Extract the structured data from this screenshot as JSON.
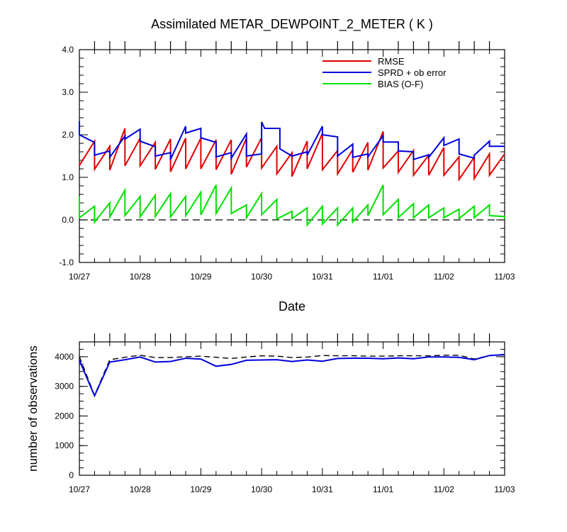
{
  "chart_data": [
    {
      "type": "line",
      "title": "Assimilated METAR_DEWPOINT_2_METER ( K )",
      "xlabel": "Date",
      "ylabel": "",
      "x_ticks": [
        "10/27",
        "10/28",
        "10/29",
        "10/30",
        "10/31",
        "11/01",
        "11/02",
        "11/03"
      ],
      "x_range_days": [
        0,
        7
      ],
      "ylim": [
        -1.0,
        4.0
      ],
      "y_ticks": [
        "-1.0",
        "0.0",
        "1.0",
        "2.0",
        "3.0",
        "4.0"
      ],
      "legend_position": "top-right",
      "reference_line": {
        "y": 0.0,
        "style": "dashed"
      },
      "series": [
        {
          "name": "RMSE",
          "color": "#e00000",
          "points": [
            [
              0,
              1.28
            ],
            [
              0.25,
              1.85
            ],
            [
              0.25,
              1.19
            ],
            [
              0.5,
              1.73
            ],
            [
              0.5,
              1.17
            ],
            [
              0.75,
              2.15
            ],
            [
              0.75,
              1.27
            ],
            [
              1,
              1.92
            ],
            [
              1,
              1.27
            ],
            [
              1.25,
              1.82
            ],
            [
              1.25,
              1.19
            ],
            [
              1.5,
              1.9
            ],
            [
              1.5,
              1.13
            ],
            [
              1.75,
              1.92
            ],
            [
              1.75,
              1.2
            ],
            [
              2,
              1.92
            ],
            [
              2,
              1.2
            ],
            [
              2.25,
              1.88
            ],
            [
              2.25,
              1.18
            ],
            [
              2.5,
              1.88
            ],
            [
              2.5,
              1.07
            ],
            [
              2.75,
              1.92
            ],
            [
              2.75,
              1.24
            ],
            [
              3,
              1.93
            ],
            [
              3,
              1.22
            ],
            [
              3.25,
              1.73
            ],
            [
              3.25,
              1.08
            ],
            [
              3.5,
              1.58
            ],
            [
              3.5,
              1.02
            ],
            [
              3.75,
              1.85
            ],
            [
              3.75,
              1.2
            ],
            [
              4,
              2.03
            ],
            [
              4,
              1.18
            ],
            [
              4.25,
              1.63
            ],
            [
              4.25,
              1.08
            ],
            [
              4.5,
              1.65
            ],
            [
              4.5,
              1.12
            ],
            [
              4.75,
              1.82
            ],
            [
              4.75,
              1.17
            ],
            [
              5,
              2.08
            ],
            [
              5,
              1.22
            ],
            [
              5.25,
              1.62
            ],
            [
              5.25,
              1.12
            ],
            [
              5.5,
              1.63
            ],
            [
              5.5,
              1.05
            ],
            [
              5.75,
              1.52
            ],
            [
              5.75,
              1.05
            ],
            [
              6,
              1.7
            ],
            [
              6,
              1.05
            ],
            [
              6.25,
              1.48
            ],
            [
              6.25,
              0.95
            ],
            [
              6.5,
              1.47
            ],
            [
              6.5,
              0.97
            ],
            [
              6.75,
              1.55
            ],
            [
              6.75,
              1.05
            ],
            [
              7,
              1.55
            ]
          ]
        },
        {
          "name": "SPRD + ob error",
          "color": "#0000dd",
          "points": [
            [
              0,
              2.32
            ],
            [
              0,
              2.0
            ],
            [
              0.25,
              1.82
            ],
            [
              0.25,
              1.52
            ],
            [
              0.5,
              1.62
            ],
            [
              0.5,
              1.47
            ],
            [
              0.75,
              1.97
            ],
            [
              0.75,
              1.9
            ],
            [
              1,
              2.13
            ],
            [
              1,
              1.85
            ],
            [
              1.25,
              1.72
            ],
            [
              1.25,
              1.5
            ],
            [
              1.5,
              1.58
            ],
            [
              1.5,
              1.42
            ],
            [
              1.75,
              2.2
            ],
            [
              1.75,
              2.04
            ],
            [
              2,
              2.15
            ],
            [
              2,
              1.93
            ],
            [
              2.25,
              1.82
            ],
            [
              2.25,
              1.48
            ],
            [
              2.5,
              1.58
            ],
            [
              2.5,
              1.45
            ],
            [
              2.75,
              2.02
            ],
            [
              2.75,
              1.5
            ],
            [
              3,
              1.55
            ],
            [
              3,
              2.3
            ],
            [
              3.05,
              2.15
            ],
            [
              3.3,
              2.15
            ],
            [
              3.3,
              1.67
            ],
            [
              3.5,
              1.5
            ],
            [
              3.75,
              1.6
            ],
            [
              3.75,
              1.52
            ],
            [
              4,
              2.2
            ],
            [
              4,
              2.0
            ],
            [
              4.25,
              1.95
            ],
            [
              4.25,
              1.5
            ],
            [
              4.5,
              1.78
            ],
            [
              4.5,
              1.47
            ],
            [
              4.75,
              1.55
            ],
            [
              4.75,
              1.48
            ],
            [
              5,
              1.98
            ],
            [
              5,
              1.83
            ],
            [
              5.25,
              1.83
            ],
            [
              5.25,
              1.62
            ],
            [
              5.5,
              1.6
            ],
            [
              5.5,
              1.42
            ],
            [
              5.75,
              1.53
            ],
            [
              5.75,
              1.47
            ],
            [
              6,
              1.93
            ],
            [
              6,
              1.75
            ],
            [
              6.25,
              1.9
            ],
            [
              6.25,
              1.55
            ],
            [
              6.5,
              1.45
            ],
            [
              6.5,
              1.52
            ],
            [
              6.75,
              1.85
            ],
            [
              6.75,
              1.73
            ],
            [
              7,
              1.73
            ]
          ]
        },
        {
          "name": "BIAS (O-F)",
          "color": "#00e000",
          "points": [
            [
              0,
              0.55
            ],
            [
              0,
              0.05
            ],
            [
              0.25,
              0.32
            ],
            [
              0.25,
              -0.05
            ],
            [
              0.5,
              0.4
            ],
            [
              0.5,
              0.07
            ],
            [
              0.75,
              0.7
            ],
            [
              0.75,
              0.1
            ],
            [
              1,
              0.55
            ],
            [
              1,
              0.07
            ],
            [
              1.25,
              0.58
            ],
            [
              1.25,
              0.08
            ],
            [
              1.5,
              0.62
            ],
            [
              1.5,
              0.07
            ],
            [
              1.75,
              0.55
            ],
            [
              1.75,
              0.1
            ],
            [
              2,
              0.65
            ],
            [
              2,
              0.12
            ],
            [
              2.25,
              0.82
            ],
            [
              2.25,
              0.15
            ],
            [
              2.5,
              0.75
            ],
            [
              2.5,
              0.15
            ],
            [
              2.75,
              0.35
            ],
            [
              2.75,
              0.05
            ],
            [
              3,
              0.62
            ],
            [
              3,
              0.12
            ],
            [
              3.25,
              0.48
            ],
            [
              3.25,
              0.02
            ],
            [
              3.5,
              0.2
            ],
            [
              3.5,
              0.03
            ],
            [
              3.75,
              0.28
            ],
            [
              3.75,
              -0.12
            ],
            [
              4,
              0.32
            ],
            [
              4,
              -0.1
            ],
            [
              4.25,
              0.28
            ],
            [
              4.25,
              -0.12
            ],
            [
              4.5,
              0.28
            ],
            [
              4.5,
              -0.05
            ],
            [
              4.75,
              0.35
            ],
            [
              4.75,
              0.1
            ],
            [
              5,
              0.82
            ],
            [
              5,
              0.12
            ],
            [
              5.25,
              0.48
            ],
            [
              5.25,
              0.05
            ],
            [
              5.5,
              0.38
            ],
            [
              5.5,
              0.05
            ],
            [
              5.75,
              0.35
            ],
            [
              5.75,
              0.05
            ],
            [
              6,
              0.28
            ],
            [
              6,
              0.05
            ],
            [
              6.25,
              0.25
            ],
            [
              6.25,
              0.03
            ],
            [
              6.5,
              0.32
            ],
            [
              6.5,
              0.05
            ],
            [
              6.75,
              0.35
            ],
            [
              6.75,
              0.1
            ],
            [
              7,
              0.08
            ],
            [
              7,
              0.02
            ]
          ]
        }
      ]
    },
    {
      "type": "line",
      "title": "",
      "xlabel": "",
      "ylabel": "number of observations",
      "x_ticks": [
        "10/27",
        "10/28",
        "10/29",
        "10/30",
        "10/31",
        "11/01",
        "11/02",
        "11/03"
      ],
      "x_range_days": [
        0,
        7
      ],
      "ylim": [
        0,
        4500
      ],
      "y_ticks": [
        "0",
        "1000",
        "2000",
        "3000",
        "4000"
      ],
      "series": [
        {
          "color": "#000000",
          "style": "dashed",
          "points": [
            [
              0,
              4000
            ],
            [
              0.25,
              2700
            ],
            [
              0.5,
              3900
            ],
            [
              0.75,
              3980
            ],
            [
              1,
              4050
            ],
            [
              1.25,
              3970
            ],
            [
              1.5,
              3970
            ],
            [
              1.75,
              4000
            ],
            [
              2,
              4020
            ],
            [
              2.25,
              3980
            ],
            [
              2.5,
              3940
            ],
            [
              2.75,
              3990
            ],
            [
              3,
              4030
            ],
            [
              3.25,
              4020
            ],
            [
              3.5,
              3970
            ],
            [
              3.75,
              3990
            ],
            [
              4,
              4040
            ],
            [
              4.25,
              4030
            ],
            [
              4.5,
              4030
            ],
            [
              4.75,
              4020
            ],
            [
              5,
              4020
            ],
            [
              5.25,
              4030
            ],
            [
              5.5,
              4030
            ],
            [
              5.75,
              4030
            ],
            [
              6,
              4050
            ],
            [
              6.25,
              4050
            ],
            [
              6.5,
              3920
            ],
            [
              6.75,
              4040
            ],
            [
              7,
              4080
            ]
          ]
        },
        {
          "color": "#0000dd",
          "style": "solid",
          "points": [
            [
              0,
              3880
            ],
            [
              0.25,
              2680
            ],
            [
              0.5,
              3820
            ],
            [
              0.75,
              3900
            ],
            [
              1,
              3990
            ],
            [
              1.25,
              3820
            ],
            [
              1.5,
              3840
            ],
            [
              1.75,
              3950
            ],
            [
              2,
              3920
            ],
            [
              2.25,
              3680
            ],
            [
              2.5,
              3740
            ],
            [
              2.75,
              3880
            ],
            [
              3,
              3890
            ],
            [
              3.25,
              3900
            ],
            [
              3.5,
              3840
            ],
            [
              3.75,
              3890
            ],
            [
              4,
              3850
            ],
            [
              4.25,
              3940
            ],
            [
              4.5,
              3950
            ],
            [
              4.75,
              3950
            ],
            [
              5,
              3930
            ],
            [
              5.25,
              3960
            ],
            [
              5.5,
              3930
            ],
            [
              5.75,
              3990
            ],
            [
              6,
              3990
            ],
            [
              6.25,
              3980
            ],
            [
              6.5,
              3900
            ],
            [
              6.75,
              4040
            ],
            [
              7,
              4070
            ]
          ]
        }
      ]
    }
  ]
}
